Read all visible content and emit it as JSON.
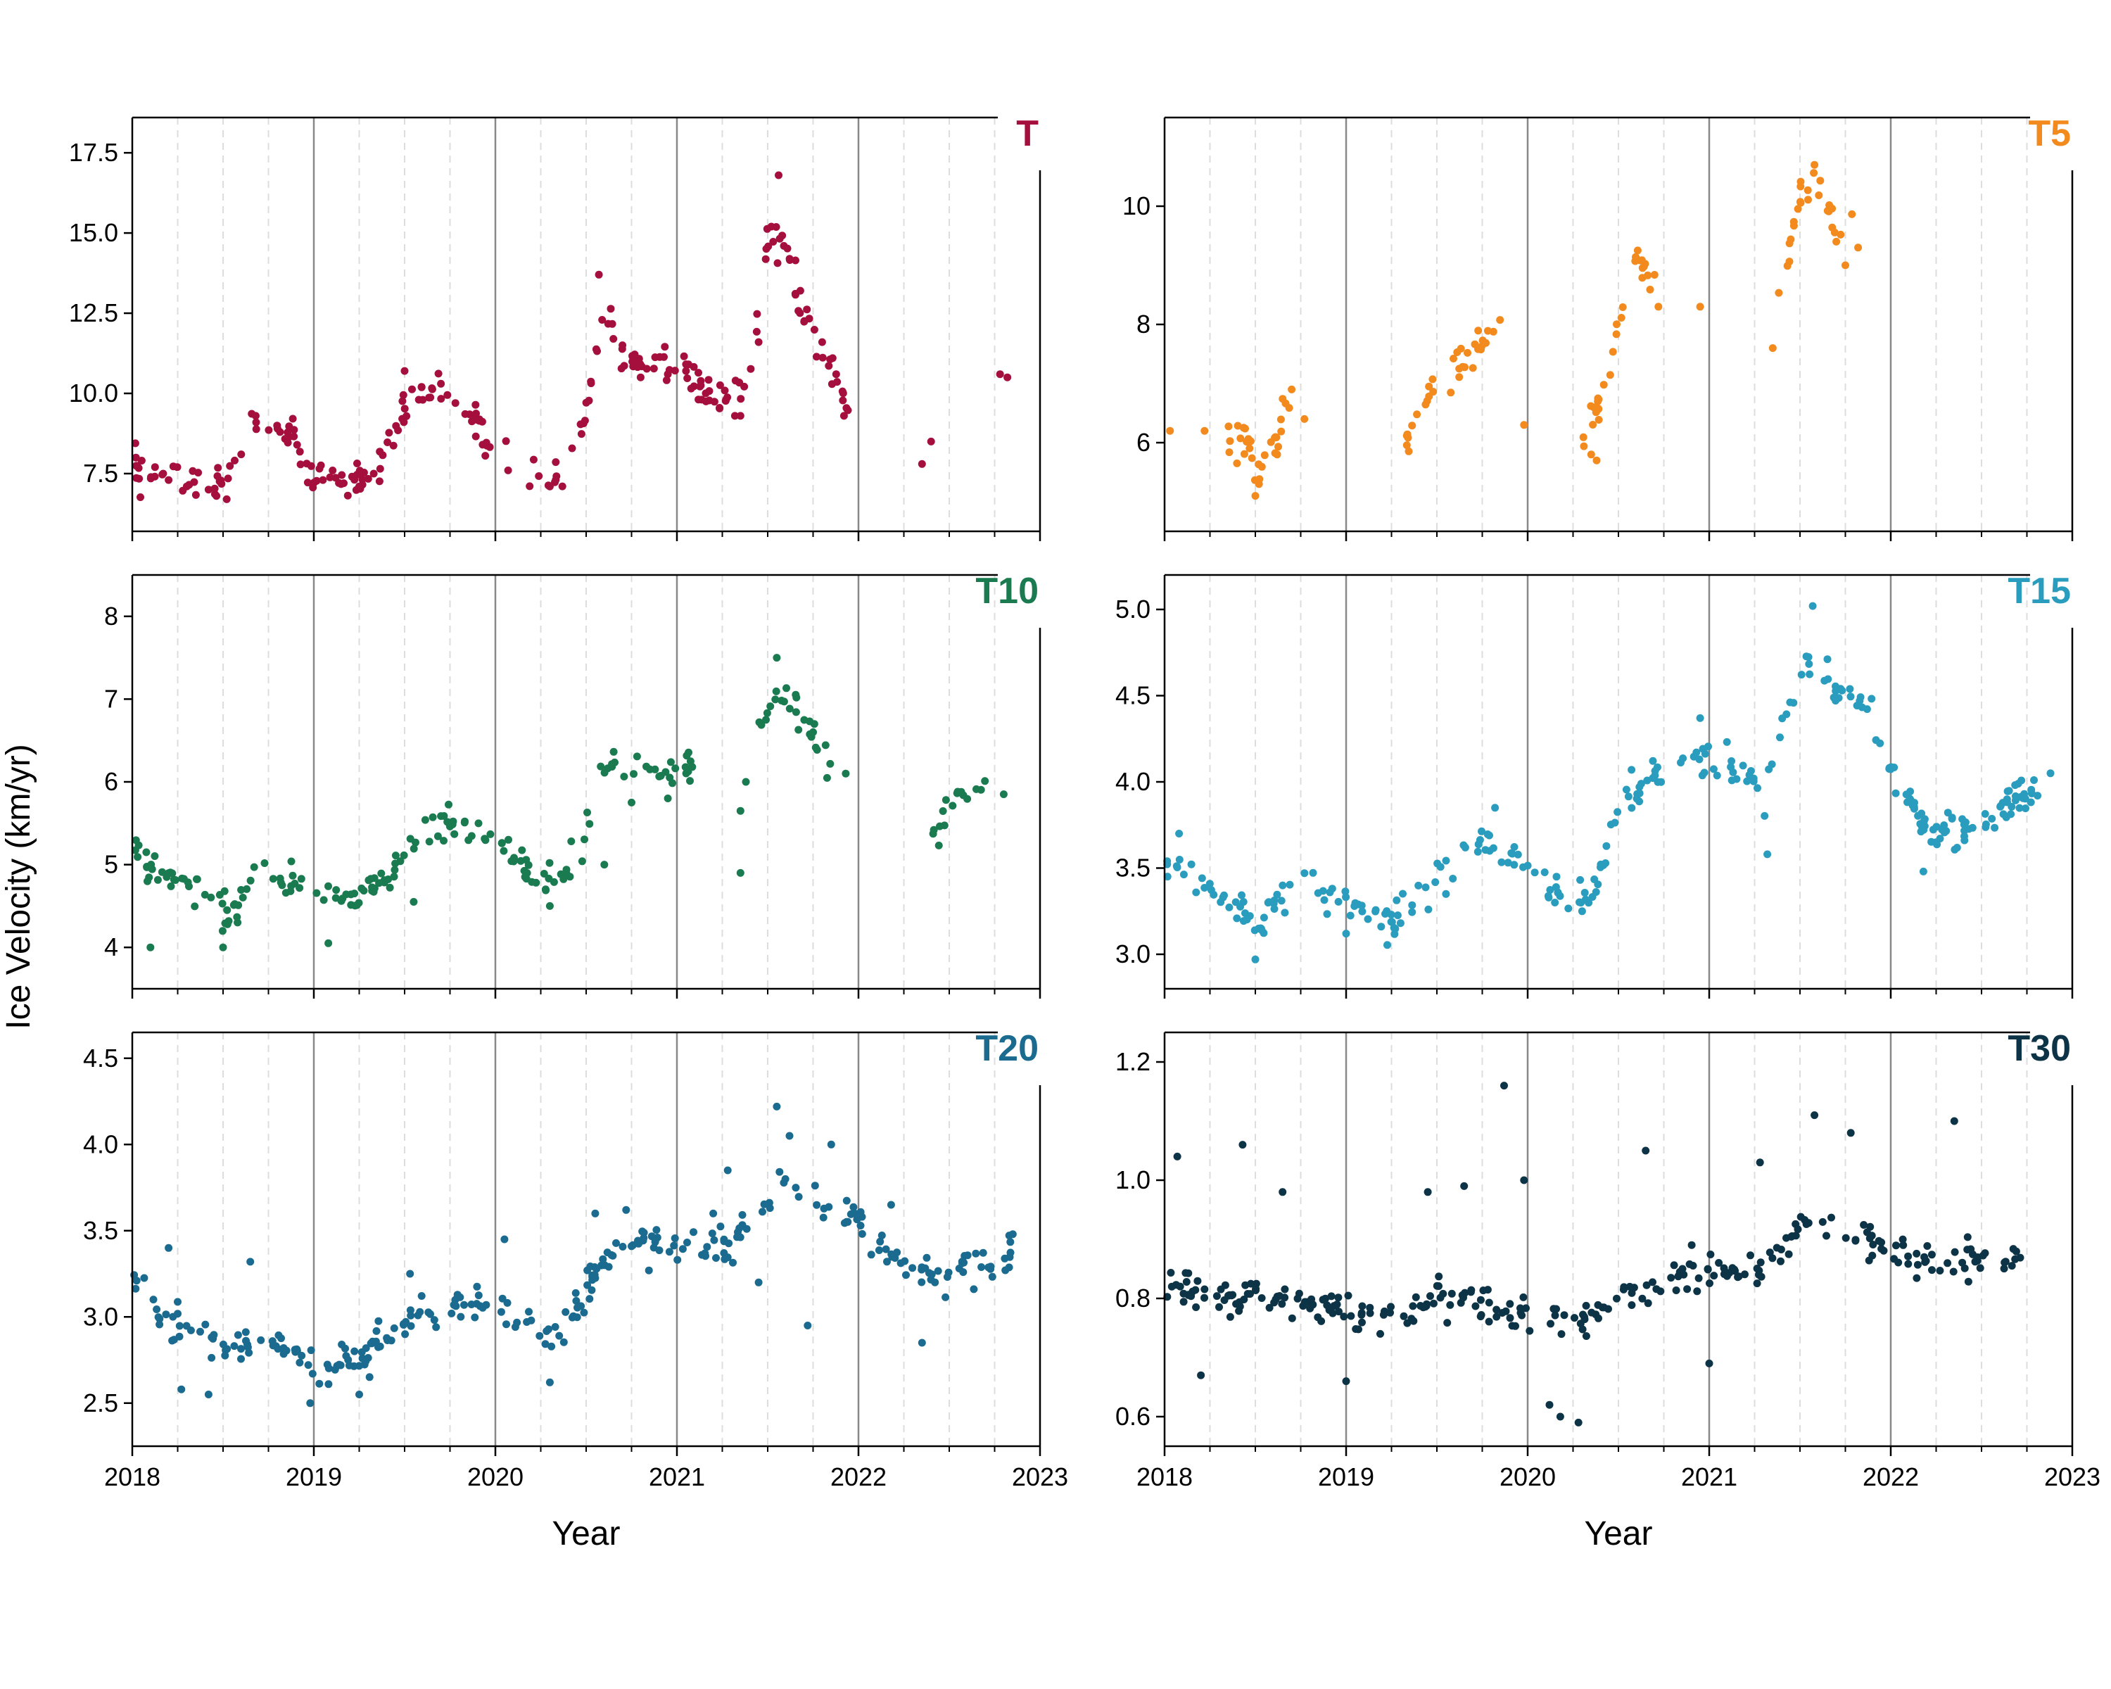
{
  "figure": {
    "ylabel": "Ice Velocity (km/yr)",
    "xlabel": "Year",
    "gridlines": {
      "major": "solid gray at year boundaries",
      "minor": "dashed light gray at quarter-year"
    }
  },
  "chart_data": [
    {
      "type": "scatter",
      "title": "T",
      "color": "#A50F3D",
      "xlim": [
        2018,
        2023
      ],
      "ylim": [
        5.7,
        18.6
      ],
      "yticks": [
        "7.5",
        "10.0",
        "12.5",
        "15.0",
        "17.5"
      ],
      "xticks": [
        "2018",
        "2019",
        "2020",
        "2021",
        "2022",
        "2023"
      ],
      "x_tick_labels_shown": false,
      "trend": [
        [
          2018.0,
          7.9
        ],
        [
          2018.15,
          7.4
        ],
        [
          2018.3,
          7.2
        ],
        [
          2018.45,
          7.0
        ],
        [
          2018.55,
          7.6
        ],
        [
          2018.65,
          9.2
        ],
        [
          2018.75,
          9.0
        ],
        [
          2018.85,
          8.8
        ],
        [
          2019.0,
          7.3
        ],
        [
          2019.2,
          7.2
        ],
        [
          2019.35,
          7.8
        ],
        [
          2019.5,
          9.6
        ],
        [
          2019.65,
          10.0
        ],
        [
          2019.8,
          10.0
        ],
        [
          2019.95,
          8.7
        ],
        [
          2020.1,
          7.7
        ],
        [
          2020.25,
          7.3
        ],
        [
          2020.4,
          7.6
        ],
        [
          2020.5,
          9.6
        ],
        [
          2020.6,
          13.0
        ],
        [
          2020.7,
          11.2
        ],
        [
          2020.85,
          10.9
        ],
        [
          2021.0,
          10.8
        ],
        [
          2021.15,
          10.2
        ],
        [
          2021.3,
          9.8
        ],
        [
          2021.4,
          10.6
        ],
        [
          2021.5,
          14.8
        ],
        [
          2021.6,
          14.6
        ],
        [
          2021.7,
          12.2
        ],
        [
          2021.85,
          11.0
        ],
        [
          2021.95,
          9.4
        ]
      ],
      "points": [
        [
          2018.02,
          8.0
        ],
        [
          2018.17,
          7.5
        ],
        [
          2018.2,
          7.3
        ],
        [
          2018.3,
          7.1
        ],
        [
          2018.42,
          7.0
        ],
        [
          2018.52,
          6.7
        ],
        [
          2018.6,
          8.1
        ],
        [
          2018.68,
          9.3
        ],
        [
          2018.8,
          8.9
        ],
        [
          2019.05,
          7.3
        ],
        [
          2019.25,
          7.1
        ],
        [
          2019.33,
          7.5
        ],
        [
          2019.5,
          10.7
        ],
        [
          2019.6,
          9.8
        ],
        [
          2019.7,
          10.3
        ],
        [
          2019.78,
          9.7
        ],
        [
          2019.93,
          8.4
        ],
        [
          2020.07,
          7.6
        ],
        [
          2020.3,
          7.1
        ],
        [
          2020.57,
          13.7
        ],
        [
          2020.65,
          11.7
        ],
        [
          2020.8,
          10.5
        ],
        [
          2020.95,
          10.6
        ],
        [
          2021.05,
          10.7
        ],
        [
          2021.35,
          9.3
        ],
        [
          2021.45,
          11.6
        ],
        [
          2021.52,
          15.2
        ],
        [
          2021.56,
          16.8
        ],
        [
          2021.68,
          13.2
        ],
        [
          2021.8,
          11.6
        ],
        [
          2021.92,
          9.3
        ],
        [
          2022.35,
          7.8
        ],
        [
          2022.4,
          8.5
        ],
        [
          2022.78,
          10.6
        ],
        [
          2022.82,
          10.5
        ]
      ]
    },
    {
      "type": "scatter",
      "title": "T5",
      "color": "#F28A1E",
      "xlim": [
        2018,
        2023
      ],
      "ylim": [
        4.5,
        11.5
      ],
      "yticks": [
        "6",
        "8",
        "10"
      ],
      "xticks": [
        "2018",
        "2019",
        "2020",
        "2021",
        "2022",
        "2023"
      ],
      "x_tick_labels_shown": false,
      "trend": [
        [
          2018.35,
          5.85
        ],
        [
          2018.45,
          6.1
        ],
        [
          2018.5,
          5.4
        ],
        [
          2018.6,
          6.0
        ],
        [
          2018.7,
          6.8
        ],
        [
          2019.32,
          5.9
        ],
        [
          2019.45,
          6.8
        ],
        [
          2019.55,
          7.2
        ],
        [
          2019.7,
          7.5
        ],
        [
          2019.85,
          7.9
        ],
        [
          2020.3,
          6.1
        ],
        [
          2020.4,
          6.8
        ],
        [
          2020.5,
          8.0
        ],
        [
          2020.6,
          9.2
        ],
        [
          2020.7,
          8.6
        ],
        [
          2021.35,
          8.0
        ],
        [
          2021.45,
          9.5
        ],
        [
          2021.52,
          10.4
        ],
        [
          2021.6,
          10.5
        ],
        [
          2021.7,
          9.5
        ],
        [
          2021.8,
          9.8
        ]
      ],
      "points": [
        [
          2018.03,
          6.2
        ],
        [
          2018.22,
          6.2
        ],
        [
          2018.5,
          5.1
        ],
        [
          2018.52,
          5.3
        ],
        [
          2018.62,
          5.8
        ],
        [
          2018.7,
          6.9
        ],
        [
          2018.77,
          6.4
        ],
        [
          2019.98,
          6.3
        ],
        [
          2020.35,
          5.8
        ],
        [
          2020.38,
          5.7
        ],
        [
          2020.72,
          8.3
        ],
        [
          2020.95,
          8.3
        ],
        [
          2021.35,
          7.6
        ],
        [
          2021.58,
          10.7
        ],
        [
          2021.7,
          9.4
        ],
        [
          2021.75,
          9.0
        ],
        [
          2021.82,
          9.3
        ]
      ]
    },
    {
      "type": "scatter",
      "title": "T10",
      "color": "#1A7A50",
      "xlim": [
        2018,
        2023
      ],
      "ylim": [
        3.5,
        8.5
      ],
      "yticks": [
        "4",
        "5",
        "6",
        "7",
        "8"
      ],
      "xticks": [
        "2018",
        "2019",
        "2020",
        "2021",
        "2022",
        "2023"
      ],
      "x_tick_labels_shown": false,
      "trend": [
        [
          2018.0,
          5.2
        ],
        [
          2018.15,
          4.9
        ],
        [
          2018.3,
          4.75
        ],
        [
          2018.45,
          4.6
        ],
        [
          2018.52,
          4.3
        ],
        [
          2018.6,
          4.6
        ],
        [
          2018.7,
          5.0
        ],
        [
          2018.85,
          4.8
        ],
        [
          2019.0,
          4.65
        ],
        [
          2019.2,
          4.6
        ],
        [
          2019.4,
          4.8
        ],
        [
          2019.55,
          5.2
        ],
        [
          2019.7,
          5.45
        ],
        [
          2019.85,
          5.5
        ],
        [
          2020.0,
          5.2
        ],
        [
          2020.2,
          4.9
        ],
        [
          2020.4,
          4.9
        ],
        [
          2020.5,
          5.5
        ],
        [
          2020.6,
          6.2
        ],
        [
          2020.75,
          6.2
        ],
        [
          2020.95,
          6.1
        ],
        [
          2021.1,
          6.2
        ],
        [
          2021.45,
          6.7
        ],
        [
          2021.52,
          7.1
        ],
        [
          2021.6,
          7.0
        ],
        [
          2021.7,
          6.7
        ],
        [
          2021.85,
          6.3
        ],
        [
          2022.4,
          5.4
        ],
        [
          2022.55,
          5.8
        ],
        [
          2022.7,
          5.95
        ]
      ],
      "points": [
        [
          2018.1,
          4.0
        ],
        [
          2018.5,
          4.0
        ],
        [
          2018.58,
          4.3
        ],
        [
          2019.08,
          4.05
        ],
        [
          2019.55,
          4.55
        ],
        [
          2020.3,
          4.5
        ],
        [
          2020.6,
          5.0
        ],
        [
          2020.75,
          5.75
        ],
        [
          2020.95,
          5.8
        ],
        [
          2021.35,
          5.65
        ],
        [
          2021.35,
          4.9
        ],
        [
          2021.38,
          6.0
        ],
        [
          2021.55,
          7.5
        ],
        [
          2021.75,
          6.6
        ],
        [
          2021.93,
          6.1
        ],
        [
          2022.8,
          5.85
        ]
      ]
    },
    {
      "type": "scatter",
      "title": "T15",
      "color": "#2A9DBE",
      "xlim": [
        2018,
        2023
      ],
      "ylim": [
        2.8,
        5.2
      ],
      "yticks": [
        "3.0",
        "3.5",
        "4.0",
        "4.5",
        "5.0"
      ],
      "xticks": [
        "2018",
        "2019",
        "2020",
        "2021",
        "2022",
        "2023"
      ],
      "x_tick_labels_shown": false,
      "trend": [
        [
          2018.0,
          3.55
        ],
        [
          2018.15,
          3.45
        ],
        [
          2018.3,
          3.35
        ],
        [
          2018.45,
          3.25
        ],
        [
          2018.52,
          3.1
        ],
        [
          2018.6,
          3.3
        ],
        [
          2018.75,
          3.4
        ],
        [
          2018.9,
          3.35
        ],
        [
          2019.1,
          3.25
        ],
        [
          2019.25,
          3.2
        ],
        [
          2019.4,
          3.3
        ],
        [
          2019.55,
          3.5
        ],
        [
          2019.75,
          3.65
        ],
        [
          2019.95,
          3.55
        ],
        [
          2020.1,
          3.4
        ],
        [
          2020.25,
          3.3
        ],
        [
          2020.4,
          3.45
        ],
        [
          2020.5,
          3.85
        ],
        [
          2020.65,
          4.0
        ],
        [
          2020.85,
          4.1
        ],
        [
          2021.0,
          4.15
        ],
        [
          2021.15,
          4.05
        ],
        [
          2021.3,
          4.0
        ],
        [
          2021.42,
          4.35
        ],
        [
          2021.55,
          4.7
        ],
        [
          2021.7,
          4.55
        ],
        [
          2021.85,
          4.45
        ],
        [
          2022.0,
          4.1
        ],
        [
          2022.2,
          3.75
        ],
        [
          2022.4,
          3.7
        ],
        [
          2022.6,
          3.85
        ],
        [
          2022.85,
          3.95
        ]
      ],
      "points": [
        [
          2018.08,
          3.7
        ],
        [
          2018.5,
          2.97
        ],
        [
          2019.0,
          3.12
        ],
        [
          2019.55,
          3.35
        ],
        [
          2019.82,
          3.85
        ],
        [
          2020.15,
          3.3
        ],
        [
          2020.3,
          3.25
        ],
        [
          2020.95,
          4.37
        ],
        [
          2021.32,
          3.58
        ],
        [
          2021.57,
          5.02
        ],
        [
          2022.18,
          3.48
        ],
        [
          2022.25,
          3.65
        ],
        [
          2022.88,
          4.05
        ]
      ]
    },
    {
      "type": "scatter",
      "title": "T20",
      "color": "#1A6B8F",
      "xlim": [
        2018,
        2023
      ],
      "ylim": [
        2.25,
        4.65
      ],
      "yticks": [
        "2.5",
        "3.0",
        "3.5",
        "4.0",
        "4.5"
      ],
      "xticks": [
        "2018",
        "2019",
        "2020",
        "2021",
        "2022",
        "2023"
      ],
      "x_tick_labels_shown": true,
      "trend": [
        [
          2018.0,
          3.2
        ],
        [
          2018.15,
          3.0
        ],
        [
          2018.3,
          2.95
        ],
        [
          2018.45,
          2.85
        ],
        [
          2018.55,
          2.8
        ],
        [
          2018.7,
          2.9
        ],
        [
          2018.85,
          2.85
        ],
        [
          2019.0,
          2.7
        ],
        [
          2019.2,
          2.75
        ],
        [
          2019.35,
          2.85
        ],
        [
          2019.5,
          2.95
        ],
        [
          2019.7,
          3.05
        ],
        [
          2019.9,
          3.1
        ],
        [
          2020.1,
          3.0
        ],
        [
          2020.25,
          2.9
        ],
        [
          2020.4,
          2.95
        ],
        [
          2020.5,
          3.2
        ],
        [
          2020.65,
          3.35
        ],
        [
          2020.85,
          3.45
        ],
        [
          2021.05,
          3.4
        ],
        [
          2021.25,
          3.4
        ],
        [
          2021.45,
          3.55
        ],
        [
          2021.55,
          3.8
        ],
        [
          2021.7,
          3.7
        ],
        [
          2021.85,
          3.65
        ],
        [
          2022.0,
          3.55
        ],
        [
          2022.2,
          3.35
        ],
        [
          2022.4,
          3.25
        ],
        [
          2022.6,
          3.3
        ],
        [
          2022.85,
          3.35
        ]
      ],
      "points": [
        [
          2018.2,
          3.4
        ],
        [
          2018.27,
          2.58
        ],
        [
          2018.42,
          2.55
        ],
        [
          2018.65,
          3.32
        ],
        [
          2018.98,
          2.5
        ],
        [
          2019.25,
          2.55
        ],
        [
          2019.53,
          3.25
        ],
        [
          2020.05,
          3.45
        ],
        [
          2020.3,
          2.62
        ],
        [
          2020.55,
          3.6
        ],
        [
          2020.72,
          3.62
        ],
        [
          2021.2,
          3.6
        ],
        [
          2021.28,
          3.85
        ],
        [
          2021.45,
          3.2
        ],
        [
          2021.55,
          4.22
        ],
        [
          2021.62,
          4.05
        ],
        [
          2021.72,
          2.95
        ],
        [
          2021.85,
          4.0
        ],
        [
          2021.98,
          3.6
        ],
        [
          2022.18,
          3.65
        ],
        [
          2022.35,
          2.85
        ],
        [
          2022.85,
          3.48
        ]
      ]
    },
    {
      "type": "scatter",
      "title": "T30",
      "color": "#0D3347",
      "xlim": [
        2018,
        2023
      ],
      "ylim": [
        0.55,
        1.25
      ],
      "yticks": [
        "0.6",
        "0.8",
        "1.0",
        "1.2"
      ],
      "xticks": [
        "2018",
        "2019",
        "2020",
        "2021",
        "2022",
        "2023"
      ],
      "x_tick_labels_shown": true,
      "trend": [
        [
          2018.0,
          0.82
        ],
        [
          2018.2,
          0.81
        ],
        [
          2018.4,
          0.8
        ],
        [
          2018.6,
          0.8
        ],
        [
          2018.8,
          0.79
        ],
        [
          2019.0,
          0.78
        ],
        [
          2019.2,
          0.76
        ],
        [
          2019.35,
          0.77
        ],
        [
          2019.5,
          0.81
        ],
        [
          2019.7,
          0.8
        ],
        [
          2019.9,
          0.78
        ],
        [
          2020.1,
          0.77
        ],
        [
          2020.25,
          0.76
        ],
        [
          2020.4,
          0.78
        ],
        [
          2020.55,
          0.82
        ],
        [
          2020.75,
          0.83
        ],
        [
          2021.0,
          0.84
        ],
        [
          2021.2,
          0.85
        ],
        [
          2021.4,
          0.88
        ],
        [
          2021.55,
          0.93
        ],
        [
          2021.7,
          0.92
        ],
        [
          2021.85,
          0.9
        ],
        [
          2022.05,
          0.87
        ],
        [
          2022.25,
          0.86
        ],
        [
          2022.5,
          0.87
        ],
        [
          2022.75,
          0.88
        ]
      ],
      "points": [
        [
          2018.07,
          1.04
        ],
        [
          2018.43,
          1.06
        ],
        [
          2018.65,
          0.98
        ],
        [
          2019.45,
          0.98
        ],
        [
          2019.65,
          0.99
        ],
        [
          2019.87,
          1.16
        ],
        [
          2019.98,
          1.0
        ],
        [
          2020.12,
          0.62
        ],
        [
          2020.18,
          0.6
        ],
        [
          2020.28,
          0.59
        ],
        [
          2020.65,
          1.05
        ],
        [
          2021.0,
          0.69
        ],
        [
          2021.28,
          1.03
        ],
        [
          2021.58,
          1.11
        ],
        [
          2021.78,
          1.08
        ],
        [
          2022.35,
          1.1
        ],
        [
          2018.2,
          0.67
        ],
        [
          2019.0,
          0.66
        ]
      ]
    }
  ]
}
